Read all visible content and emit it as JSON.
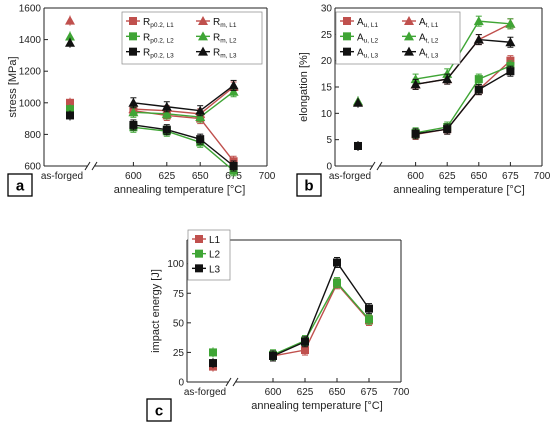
{
  "colors": {
    "L1": "#c0504d",
    "L2": "#3fa535",
    "L3": "#111111",
    "axis": "#222222"
  },
  "chart_data": [
    {
      "panel": "a",
      "type": "line",
      "ylabel": "stress [MPa]",
      "xlabel": "annealing temperature [°C]",
      "x_special_label": "as-forged",
      "ylim": [
        600,
        1600
      ],
      "yticks": [
        600,
        800,
        1000,
        1200,
        1400,
        1600
      ],
      "xlim": [
        575,
        700
      ],
      "xticks": [
        600,
        625,
        650,
        675,
        700
      ],
      "series": [
        {
          "name": "Rp0.2, L1",
          "label_main": "R",
          "label_sub": "p0.2, L1",
          "color": "L1",
          "marker": "square",
          "as_forged": 1000,
          "x": [
            600,
            625,
            650,
            675
          ],
          "y": [
            950,
            920,
            900,
            630
          ]
        },
        {
          "name": "Rp0.2, L2",
          "label_main": "R",
          "label_sub": "p0.2, L2",
          "color": "L2",
          "marker": "square",
          "as_forged": 960,
          "x": [
            600,
            625,
            650,
            675
          ],
          "y": [
            845,
            820,
            750,
            570
          ]
        },
        {
          "name": "Rp0.2, L3",
          "label_main": "R",
          "label_sub": "p0.2, L3",
          "color": "L3",
          "marker": "square",
          "as_forged": 920,
          "x": [
            600,
            625,
            650,
            675
          ],
          "y": [
            860,
            830,
            770,
            600
          ]
        },
        {
          "name": "Rm, L1",
          "label_main": "R",
          "label_sub": "m, L1",
          "color": "L1",
          "marker": "triangle",
          "as_forged": 1520,
          "x": [
            600,
            625,
            650,
            675
          ],
          "y": [
            960,
            950,
            930,
            1100
          ]
        },
        {
          "name": "Rm, L2",
          "label_main": "R",
          "label_sub": "m, L2",
          "color": "L2",
          "marker": "triangle",
          "as_forged": 1420,
          "x": [
            600,
            625,
            650,
            675
          ],
          "y": [
            940,
            930,
            910,
            1070
          ]
        },
        {
          "name": "Rm, L3",
          "label_main": "R",
          "label_sub": "m, L3",
          "color": "L3",
          "marker": "triangle",
          "as_forged": 1380,
          "x": [
            600,
            625,
            650,
            675
          ],
          "y": [
            1000,
            975,
            950,
            1110
          ]
        }
      ]
    },
    {
      "panel": "b",
      "type": "line",
      "ylabel": "elongation [%]",
      "xlabel": "annealing temperature [°C]",
      "x_special_label": "as-forged",
      "ylim": [
        0,
        30
      ],
      "yticks": [
        0,
        5,
        10,
        15,
        20,
        25,
        30
      ],
      "xlim": [
        575,
        700
      ],
      "xticks": [
        600,
        625,
        650,
        675,
        700
      ],
      "series": [
        {
          "name": "Au, L1",
          "label_main": "A",
          "label_sub": "u, L1",
          "color": "L1",
          "marker": "square",
          "as_forged": 3.8,
          "x": [
            600,
            625,
            650,
            675
          ],
          "y": [
            6.0,
            7.0,
            14.5,
            20.0
          ]
        },
        {
          "name": "Au, L2",
          "label_main": "A",
          "label_sub": "u, L2",
          "color": "L2",
          "marker": "square",
          "as_forged": 3.8,
          "x": [
            600,
            625,
            650,
            675
          ],
          "y": [
            6.3,
            7.4,
            16.5,
            19.0
          ]
        },
        {
          "name": "Au, L3",
          "label_main": "A",
          "label_sub": "u, L3",
          "color": "L3",
          "marker": "square",
          "as_forged": 3.8,
          "x": [
            600,
            625,
            650,
            675
          ],
          "y": [
            6.1,
            7.0,
            14.5,
            18.0
          ]
        },
        {
          "name": "At, L1",
          "label_main": "A",
          "label_sub": "t, L1",
          "color": "L1",
          "marker": "triangle",
          "as_forged": 12.2,
          "x": [
            600,
            625,
            650,
            675
          ],
          "y": [
            15.5,
            16.5,
            24.0,
            27.0
          ]
        },
        {
          "name": "At, L2",
          "label_main": "A",
          "label_sub": "t, L2",
          "color": "L2",
          "marker": "triangle",
          "as_forged": 12.3,
          "x": [
            600,
            625,
            650,
            675
          ],
          "y": [
            16.5,
            17.5,
            27.5,
            27.0
          ]
        },
        {
          "name": "At, L3",
          "label_main": "A",
          "label_sub": "t, L3",
          "color": "L3",
          "marker": "triangle",
          "as_forged": 12.0,
          "x": [
            600,
            625,
            650,
            675
          ],
          "y": [
            15.5,
            16.5,
            24.0,
            23.5
          ]
        }
      ]
    },
    {
      "panel": "c",
      "type": "line",
      "ylabel": "impact energy [J]",
      "xlabel": "annealing temperature [°C]",
      "x_special_label": "as-forged",
      "ylim": [
        0,
        120
      ],
      "yticks": [
        0,
        25,
        50,
        75,
        100
      ],
      "xlim": [
        575,
        700
      ],
      "xticks": [
        600,
        625,
        650,
        675,
        700
      ],
      "series": [
        {
          "name": "L1",
          "label_main": "L1",
          "label_sub": "",
          "color": "L1",
          "marker": "square",
          "as_forged": 13,
          "x": [
            600,
            625,
            650,
            675
          ],
          "y": [
            22,
            27,
            83,
            52
          ]
        },
        {
          "name": "L2",
          "label_main": "L2",
          "label_sub": "",
          "color": "L2",
          "marker": "square",
          "as_forged": 25,
          "x": [
            600,
            625,
            650,
            675
          ],
          "y": [
            23,
            35,
            84,
            53
          ]
        },
        {
          "name": "L3",
          "label_main": "L3",
          "label_sub": "",
          "color": "L3",
          "marker": "square",
          "as_forged": 16,
          "x": [
            600,
            625,
            650,
            675
          ],
          "y": [
            22,
            34,
            101,
            62
          ]
        }
      ]
    }
  ]
}
